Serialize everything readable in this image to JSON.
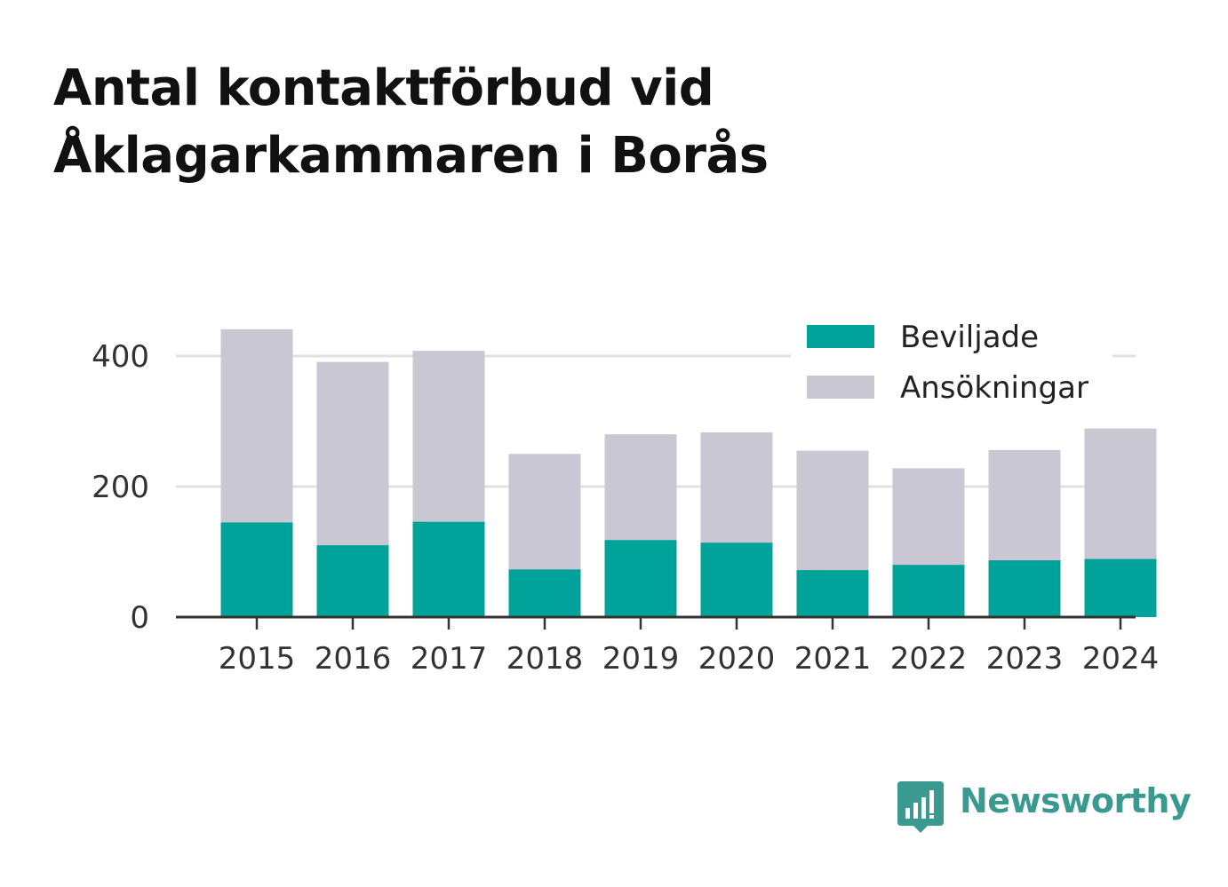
{
  "title_lines": [
    "Antal kontaktförbud vid",
    "Åklagarkammaren i Borås"
  ],
  "brand": {
    "name": "Newsworthy",
    "icon": "bar-chart-speech-bubble-icon",
    "color": "#3a9a90"
  },
  "chart_data": {
    "type": "bar",
    "stacked": false,
    "overlapping": true,
    "categories": [
      "2015",
      "2016",
      "2017",
      "2018",
      "2019",
      "2020",
      "2021",
      "2022",
      "2023",
      "2024"
    ],
    "series": [
      {
        "name": "Ansökningar",
        "color": "#c8c7d2",
        "values": [
          441,
          391,
          408,
          250,
          280,
          283,
          255,
          228,
          256,
          289
        ]
      },
      {
        "name": "Beviljade",
        "color": "#00a39a",
        "values": [
          145,
          110,
          146,
          73,
          118,
          114,
          72,
          80,
          87,
          89
        ]
      }
    ],
    "legend_order": [
      "Beviljade",
      "Ansökningar"
    ],
    "yticks": [
      0,
      200,
      400
    ],
    "ylim": [
      0,
      450
    ],
    "grid": true,
    "legend_position": "top-right",
    "xlabel": "",
    "ylabel": ""
  }
}
